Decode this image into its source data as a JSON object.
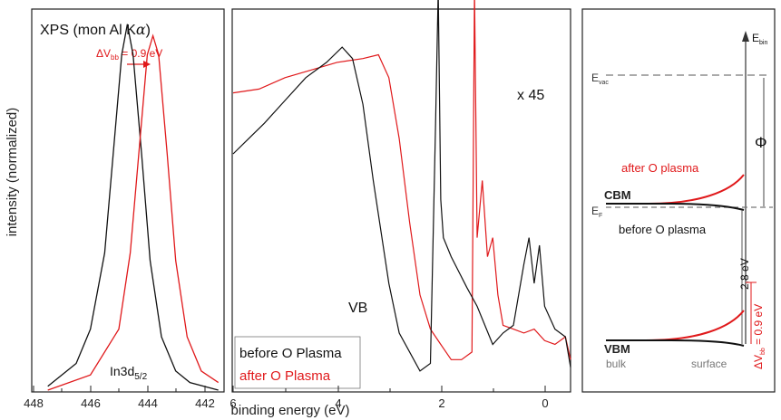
{
  "colors": {
    "before": "#111111",
    "after": "#e0191b",
    "axis": "#222222",
    "dashed": "#777777"
  },
  "axes": {
    "ylabel": "intensity (normalized)",
    "xlabel": "binding energy (eV)"
  },
  "panel1": {
    "title": "XPS (mon Al K",
    "title_alpha": "α",
    "title_end": ")",
    "shift_prefix": "ΔV",
    "shift_sub": "bb",
    "shift_value": " = 0.9 eV",
    "peak_label": "In3d",
    "peak_sub": "5/2",
    "xticks": [
      "448",
      "446",
      "444",
      "442"
    ]
  },
  "panel2": {
    "multiplier": "x 45",
    "vb_label": "VB",
    "legend": [
      "before O Plasma",
      "after O Plasma"
    ],
    "xticks": [
      "6",
      "4",
      "2",
      "0"
    ]
  },
  "panel3": {
    "ebin": "E",
    "ebin_sub": "bin",
    "evac": "E",
    "evac_sub": "vac",
    "ef": "E",
    "ef_sub": "F",
    "phi": "Φ",
    "cbm": "CBM",
    "vbm": "VBM",
    "after": "after O plasma",
    "before": "before O plasma",
    "gap": "2.8 eV",
    "dv": "ΔV",
    "dv_sub": "bb",
    "dv_value": " = 0.9 eV",
    "bulk": "bulk",
    "surface": "surface"
  },
  "chart_data": [
    {
      "type": "line",
      "title": "XPS (mon Al Kα)",
      "xlabel": "binding energy (eV)",
      "ylabel": "intensity (normalized)",
      "xlim": [
        448,
        441.3
      ],
      "annotations": [
        "ΔVbb = 0.9 eV",
        "In3d5/2"
      ],
      "series": [
        {
          "name": "before O Plasma",
          "peak_x": 444.7,
          "fwhm": 1.1,
          "x": [
            447.5,
            446.5,
            446.0,
            445.5,
            445.2,
            444.9,
            444.7,
            444.5,
            444.2,
            443.9,
            443.5,
            443.0,
            442.5,
            441.5
          ],
          "y": [
            0.01,
            0.07,
            0.16,
            0.36,
            0.62,
            0.88,
            0.96,
            0.88,
            0.62,
            0.34,
            0.14,
            0.05,
            0.02,
            0.0
          ]
        },
        {
          "name": "after O Plasma",
          "peak_x": 443.8,
          "fwhm": 1.1,
          "x": [
            447.5,
            446.0,
            445.0,
            444.6,
            444.3,
            444.0,
            443.8,
            443.6,
            443.3,
            443.0,
            442.6,
            442.1,
            441.5
          ],
          "y": [
            0.0,
            0.04,
            0.16,
            0.36,
            0.62,
            0.88,
            0.93,
            0.88,
            0.62,
            0.34,
            0.14,
            0.05,
            0.02
          ]
        }
      ]
    },
    {
      "type": "line",
      "xlabel": "binding energy (eV)",
      "xlim": [
        6,
        -0.5
      ],
      "annotations": [
        "x 45",
        "VB"
      ],
      "series": [
        {
          "name": "before O Plasma",
          "x": [
            6.0,
            5.7,
            5.4,
            5.0,
            4.6,
            4.2,
            3.9,
            3.7,
            3.5,
            3.3,
            3.0,
            2.8,
            2.6,
            2.4,
            2.2,
            2.1,
            2.05,
            2.0,
            1.95,
            1.8,
            1.5,
            1.3,
            1.0,
            0.8,
            0.6,
            0.4,
            0.3,
            0.2,
            0.1,
            0.0,
            -0.2,
            -0.4,
            -0.5
          ],
          "y": [
            0.62,
            0.66,
            0.7,
            0.76,
            0.82,
            0.86,
            0.9,
            0.87,
            0.75,
            0.55,
            0.28,
            0.15,
            0.1,
            0.05,
            0.07,
            0.7,
            1.05,
            0.5,
            0.4,
            0.35,
            0.27,
            0.22,
            0.12,
            0.15,
            0.17,
            0.33,
            0.4,
            0.28,
            0.38,
            0.22,
            0.16,
            0.14,
            0.06
          ]
        },
        {
          "name": "after O Plasma",
          "x": [
            6.0,
            5.5,
            5.0,
            4.5,
            4.0,
            3.5,
            3.2,
            3.0,
            2.8,
            2.6,
            2.4,
            2.2,
            2.0,
            1.8,
            1.6,
            1.4,
            1.35,
            1.3,
            1.2,
            1.1,
            1.0,
            0.9,
            0.8,
            0.6,
            0.4,
            0.2,
            0.0,
            -0.2,
            -0.4,
            -0.5
          ],
          "y": [
            0.78,
            0.79,
            0.82,
            0.84,
            0.86,
            0.87,
            0.88,
            0.82,
            0.66,
            0.44,
            0.25,
            0.16,
            0.12,
            0.08,
            0.08,
            0.1,
            1.05,
            0.4,
            0.55,
            0.35,
            0.4,
            0.25,
            0.17,
            0.16,
            0.15,
            0.16,
            0.13,
            0.12,
            0.14,
            0.08
          ]
        }
      ]
    }
  ]
}
